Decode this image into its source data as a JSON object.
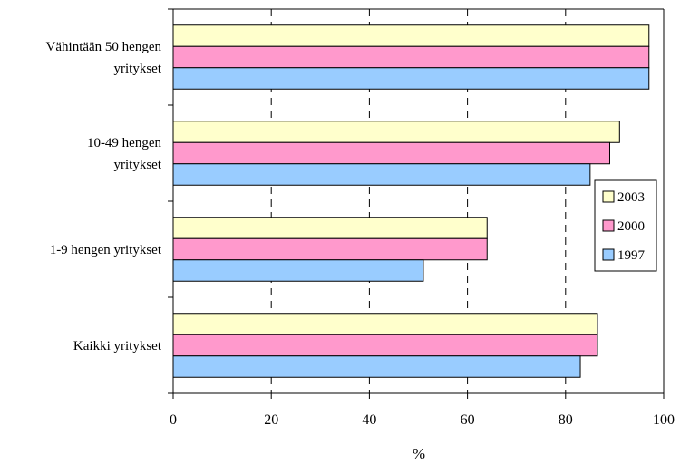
{
  "chart_data": {
    "type": "bar",
    "orientation": "horizontal",
    "title": "",
    "xlabel": "%",
    "ylabel": "",
    "xlim": [
      0,
      100
    ],
    "xticks": [
      0,
      20,
      40,
      60,
      80,
      100
    ],
    "grid": "vertical dashed",
    "legend_position": "right",
    "categories": [
      [
        "Vähintään 50 hengen",
        "yritykset"
      ],
      [
        "10-49 hengen",
        "yritykset"
      ],
      [
        "1-9 hengen yritykset"
      ],
      [
        "Kaikki yritykset"
      ]
    ],
    "series": [
      {
        "name": "2003",
        "color": "#ffffcc",
        "values": [
          97,
          91,
          64,
          86.5
        ]
      },
      {
        "name": "2000",
        "color": "#ff99cc",
        "values": [
          97,
          89,
          64,
          86.5
        ]
      },
      {
        "name": "1997",
        "color": "#99ccff",
        "values": [
          97,
          85,
          51,
          83
        ]
      }
    ]
  }
}
